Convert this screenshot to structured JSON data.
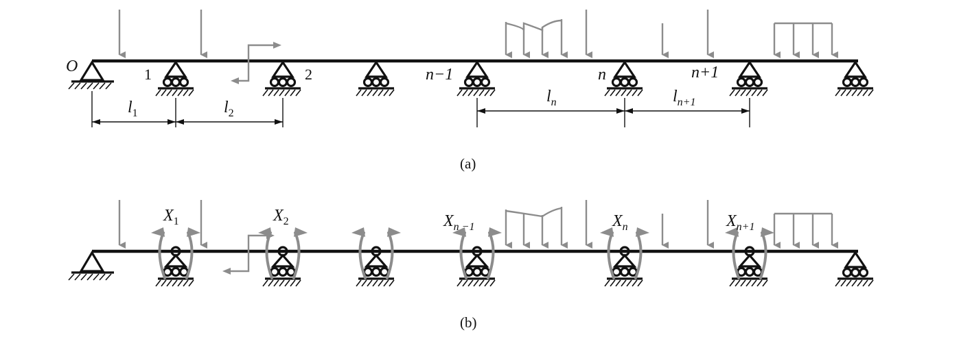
{
  "figure": {
    "panel_a": {
      "caption": "(a)",
      "origin_label": "O",
      "support_labels": [
        "1",
        "2",
        "n−1",
        "n",
        "n+1"
      ],
      "span_labels": [
        {
          "base": "l",
          "sub": "1"
        },
        {
          "base": "l",
          "sub": "2"
        },
        {
          "base": "l",
          "sub": "n"
        },
        {
          "base": "l",
          "sub": "n+1"
        }
      ]
    },
    "panel_b": {
      "caption": "(b)",
      "redundant_labels": [
        {
          "base": "X",
          "sub": "1"
        },
        {
          "base": "X",
          "sub": "2"
        },
        {
          "base": "X",
          "sub": "n −1"
        },
        {
          "base": "X",
          "sub": "n"
        },
        {
          "base": "X",
          "sub": "n+1"
        }
      ]
    },
    "colors": {
      "beam": "#111111",
      "loads": "#8c8c8c"
    }
  }
}
